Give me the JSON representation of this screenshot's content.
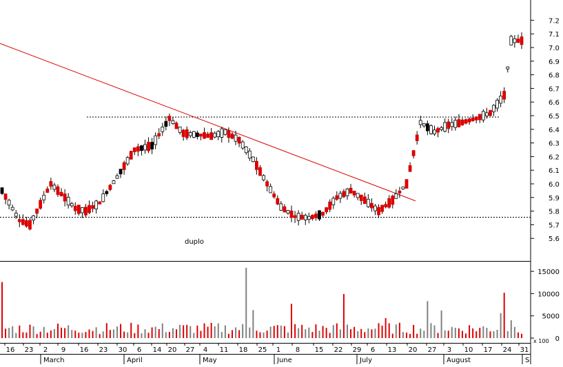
{
  "chart_data": {
    "type": "candlestick",
    "price_axis": {
      "ticks": [
        "5.6",
        "5.7",
        "5.8",
        "5.9",
        "6.0",
        "6.1",
        "6.2",
        "6.3",
        "6.4",
        "6.5",
        "6.6",
        "6.7",
        "6.8",
        "6.9",
        "7.0",
        "7.1",
        "7.2"
      ],
      "range": [
        5.56,
        7.3
      ]
    },
    "volume_axis": {
      "ticks": [
        "0",
        "5000",
        "10000",
        "15000"
      ],
      "range": [
        0,
        16000
      ],
      "multiplier_label": "x 100"
    },
    "annotation_text": "duplo",
    "day_labels": [
      "16",
      "23",
      "2",
      "9",
      "16",
      "23",
      "30",
      "6",
      "14",
      "20",
      "27",
      "4",
      "11",
      "18",
      "25",
      "1",
      "8",
      "15",
      "22",
      "29",
      "6",
      "13",
      "20",
      "27",
      "3",
      "10",
      "17",
      "24",
      "31"
    ],
    "month_labels": [
      "March",
      "April",
      "May",
      "June",
      "July",
      "August",
      "S"
    ],
    "reference_lines": [
      {
        "kind": "horizontal-dashed",
        "y": 6.49
      },
      {
        "kind": "horizontal-dashed",
        "y": 5.755
      }
    ],
    "trendline": {
      "from_y": 7.03,
      "to_y": 5.875
    },
    "colors": {
      "up_candle": "#ffffff",
      "down_candle": "#dd0000",
      "flat_candle": "#000000",
      "trendline": "#dd0000",
      "volume_up": "#808080",
      "volume_down": "#dd0000"
    }
  }
}
